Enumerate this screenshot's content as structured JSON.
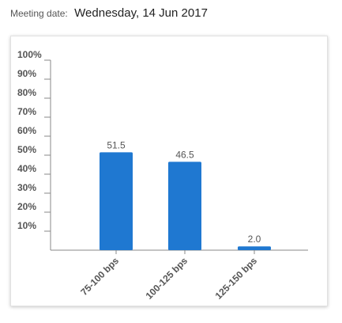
{
  "meeting": {
    "label": "Meeting date:",
    "date": "Wednesday, 14 Jun 2017"
  },
  "chart_data": {
    "type": "bar",
    "title": "",
    "xlabel": "",
    "ylabel": "",
    "categories": [
      "75-100 bps",
      "100-125 bps",
      "125-150 bps"
    ],
    "values": [
      51.5,
      46.5,
      2.0
    ],
    "value_labels": [
      "51.5",
      "46.5",
      "2.0"
    ],
    "ylim": [
      0,
      100
    ],
    "y_ticks": [
      "10%",
      "20%",
      "30%",
      "40%",
      "50%",
      "60%",
      "70%",
      "80%",
      "90%",
      "100%"
    ],
    "grid": false,
    "legend": "none",
    "bar_color": "#1f78d1"
  }
}
